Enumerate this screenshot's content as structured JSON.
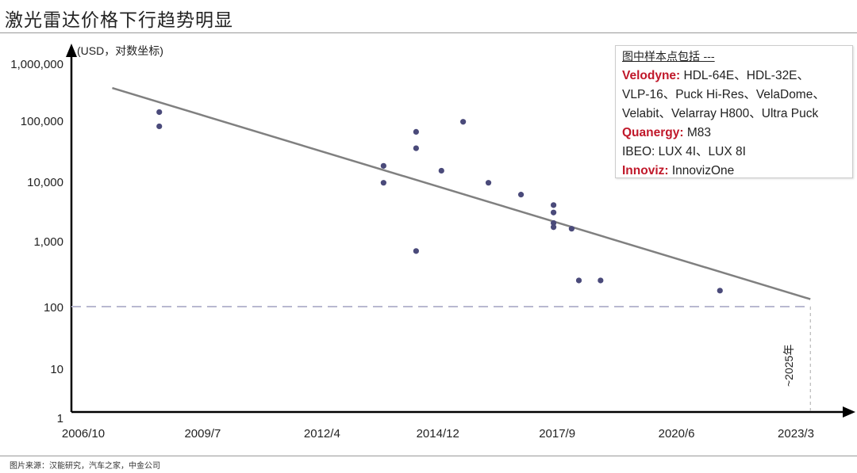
{
  "title": "激光雷达价格下行趋势明显",
  "source": "图片来源：汉能研究，汽车之家，中金公司",
  "chart_data": {
    "type": "scatter",
    "ylabel": "(USD，对数坐标)",
    "y_scale": "log",
    "ylim": [
      1,
      1000000
    ],
    "y_ticks": [
      "1,000,000",
      "100,000",
      "10,000",
      "1,000",
      "100",
      "10",
      "1"
    ],
    "x_ticks": [
      "2006/10",
      "2009/7",
      "2012/4",
      "2014/12",
      "2017/9",
      "2020/6",
      "2023/3"
    ],
    "grid": false,
    "point_color": "#4a4a7a",
    "trend_color": "#808080",
    "points": [
      {
        "x": "2008/7",
        "y": 140000
      },
      {
        "x": "2008/7",
        "y": 80000
      },
      {
        "x": "2013/9",
        "y": 18000
      },
      {
        "x": "2013/9",
        "y": 9500
      },
      {
        "x": "2014/6",
        "y": 65000
      },
      {
        "x": "2014/6",
        "y": 35000
      },
      {
        "x": "2014/6",
        "y": 700
      },
      {
        "x": "2015/1",
        "y": 15000
      },
      {
        "x": "2015/7",
        "y": 95000
      },
      {
        "x": "2016/2",
        "y": 9500
      },
      {
        "x": "2016/11",
        "y": 6000
      },
      {
        "x": "2017/8",
        "y": 4000
      },
      {
        "x": "2017/8",
        "y": 3000
      },
      {
        "x": "2017/8",
        "y": 2000
      },
      {
        "x": "2017/8",
        "y": 1700
      },
      {
        "x": "2018/1",
        "y": 1600
      },
      {
        "x": "2018/3",
        "y": 250
      },
      {
        "x": "2018/9",
        "y": 250
      },
      {
        "x": "2021/6",
        "y": 175
      }
    ],
    "trend_line": {
      "start": {
        "x": "2007/6",
        "y": 370000
      },
      "end": {
        "x": "2023/7",
        "y": 130
      }
    },
    "reference_line": {
      "y": 100,
      "style": "dashed",
      "color": "#b8b8d0"
    },
    "annotation": "~2025年",
    "legend": {
      "heading": "图中样本点包括 ---",
      "entries": [
        {
          "brand": "Velodyne:",
          "models": " HDL-64E、HDL-32E、"
        },
        {
          "brand": "",
          "models": "VLP-16、Puck Hi-Res、VelaDome、"
        },
        {
          "brand": "",
          "models": "Velabit、Velarray H800、Ultra Puck"
        },
        {
          "brand": "Quanergy:",
          "models": " M83"
        },
        {
          "brand": "",
          "models": "IBEO: LUX 4I、LUX 8I"
        },
        {
          "brand": "Innoviz:",
          "models": " InnovizOne"
        }
      ]
    }
  }
}
